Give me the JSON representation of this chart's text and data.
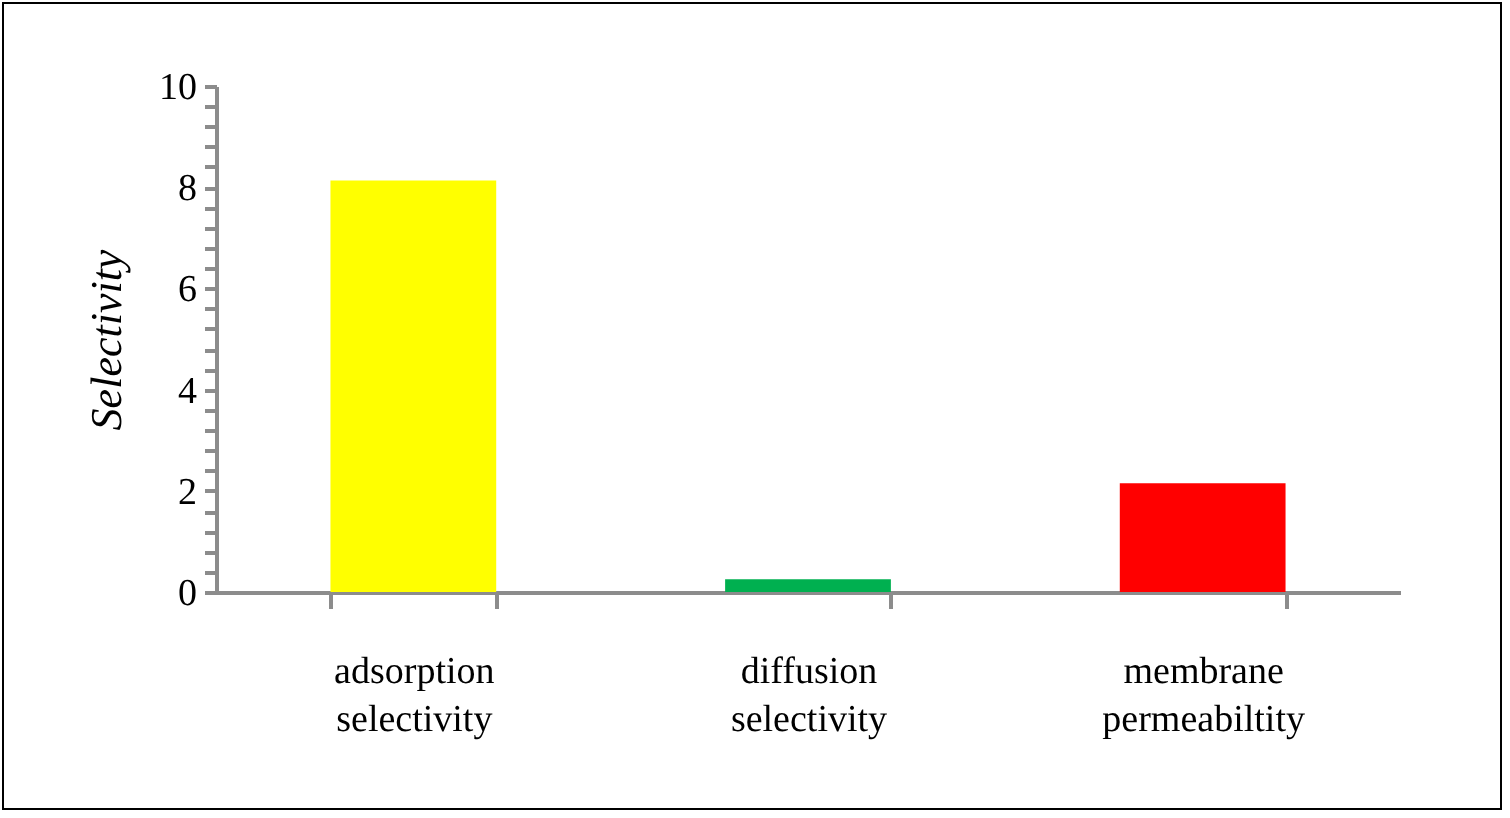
{
  "chart_data": {
    "type": "bar",
    "ylabel": "Selectivity",
    "categories": [
      "adsorption selectivity",
      "diffusion selectivity",
      "membrane permeabiltity"
    ],
    "values": [
      8.13,
      0.25,
      2.15
    ],
    "colors": [
      "#ffff00",
      "#00b050",
      "#ff0000"
    ],
    "ylim": [
      0,
      10
    ],
    "yticks": [
      0,
      {
        "value": 0.4,
        "label": null
      },
      {
        "value": 0.8,
        "label": null
      },
      {
        "value": 1.2,
        "label": null
      },
      {
        "value": 1.6,
        "label": null
      },
      2,
      {
        "value": 2.4,
        "label": null
      },
      {
        "value": 2.8,
        "label": null
      },
      {
        "value": 3.2,
        "label": null
      },
      {
        "value": 3.6,
        "label": null
      },
      4,
      {
        "value": 4.4,
        "label": null
      },
      {
        "value": 4.8,
        "label": null
      },
      {
        "value": 5.2,
        "label": null
      },
      {
        "value": 5.6,
        "label": null
      },
      6,
      {
        "value": 6.4,
        "label": null
      },
      {
        "value": 6.8,
        "label": null
      },
      {
        "value": 7.2,
        "label": null
      },
      {
        "value": 7.6,
        "label": null
      },
      8,
      {
        "value": 8.4,
        "label": null
      },
      {
        "value": 8.8,
        "label": null
      },
      {
        "value": 9.2,
        "label": null
      },
      {
        "value": 9.6,
        "label": null
      },
      10
    ],
    "grid": false
  }
}
